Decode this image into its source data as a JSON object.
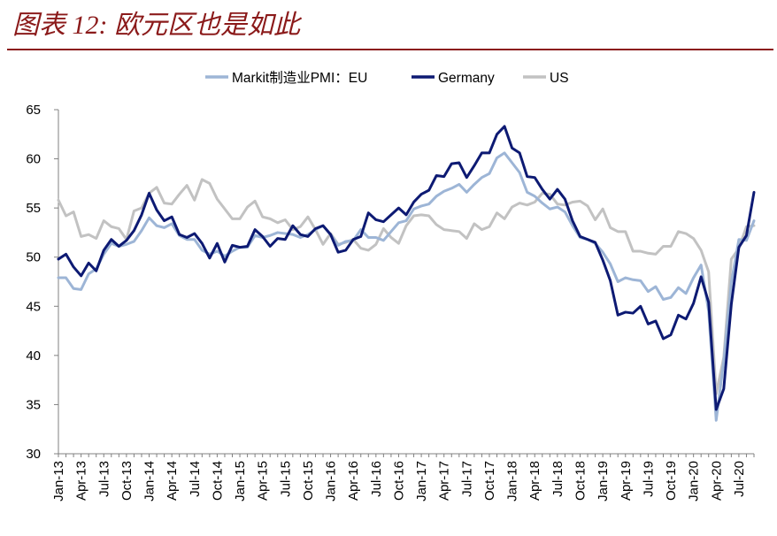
{
  "page": {
    "title": "图表 12: 欧元区也是如此"
  },
  "colors": {
    "title": "#8b1a1a",
    "EU": "#9db5d6",
    "Germany": "#0d1a73",
    "US": "#c2c2c2"
  },
  "chart_data": {
    "type": "line",
    "title": "",
    "xlabel": "",
    "ylabel": "",
    "ylim": [
      30,
      65
    ],
    "yticks": [
      30,
      35,
      40,
      45,
      50,
      55,
      60,
      65
    ],
    "grid": false,
    "legend_position": "top-center",
    "x_start": "Jan-13",
    "x_end": "Oct-20",
    "x_tick_labels": [
      "Jan-13",
      "Apr-13",
      "Jul-13",
      "Oct-13",
      "Jan-14",
      "Apr-14",
      "Jul-14",
      "Oct-14",
      "Jan-15",
      "Apr-15",
      "Jul-15",
      "Oct-15",
      "Jan-16",
      "Apr-16",
      "Jul-16",
      "Oct-16",
      "Jan-17",
      "Apr-17",
      "Jul-17",
      "Oct-17",
      "Jan-18",
      "Apr-18",
      "Jul-18",
      "Oct-18",
      "Jan-19",
      "Apr-19",
      "Jul-19",
      "Oct-19",
      "Jan-20",
      "Apr-20",
      "Jul-20"
    ],
    "series": [
      {
        "name": "Markit制造业PMI：EU",
        "key": "EU",
        "values": [
          47.9,
          47.9,
          46.8,
          46.7,
          48.3,
          48.8,
          50.3,
          51.4,
          51.1,
          51.3,
          51.6,
          52.7,
          54.0,
          53.2,
          53.0,
          53.4,
          52.2,
          51.8,
          51.8,
          50.7,
          50.3,
          50.6,
          50.1,
          50.6,
          51.0,
          51.0,
          52.2,
          52.0,
          52.2,
          52.5,
          52.4,
          52.3,
          52.0,
          52.3,
          52.8,
          53.2,
          52.3,
          51.2,
          51.6,
          51.7,
          52.8,
          52.0,
          52.0,
          51.7,
          52.6,
          53.5,
          53.7,
          54.9,
          55.2,
          55.4,
          56.2,
          56.7,
          57.0,
          57.4,
          56.6,
          57.4,
          58.1,
          58.5,
          60.1,
          60.6,
          59.6,
          58.6,
          56.6,
          56.2,
          55.5,
          54.9,
          55.1,
          54.6,
          53.2,
          52.0,
          51.8,
          51.4,
          50.5,
          49.3,
          47.5,
          47.9,
          47.7,
          47.6,
          46.5,
          47.0,
          45.7,
          45.9,
          46.9,
          46.3,
          47.9,
          49.2,
          44.5,
          33.4,
          39.4,
          47.4,
          51.8,
          51.7,
          53.7
        ]
      },
      {
        "name": "Germany",
        "key": "Germany",
        "values": [
          49.8,
          50.3,
          49.0,
          48.1,
          49.4,
          48.6,
          50.7,
          51.8,
          51.1,
          51.7,
          52.7,
          54.3,
          56.5,
          54.8,
          53.7,
          54.1,
          52.3,
          52.0,
          52.4,
          51.4,
          49.9,
          51.4,
          49.5,
          51.2,
          51.0,
          51.1,
          52.8,
          52.1,
          51.1,
          51.9,
          51.8,
          53.2,
          52.3,
          52.1,
          52.9,
          53.2,
          52.3,
          50.5,
          50.7,
          51.8,
          52.1,
          54.5,
          53.8,
          53.6,
          54.3,
          55.0,
          54.3,
          55.6,
          56.4,
          56.8,
          58.3,
          58.2,
          59.5,
          59.6,
          58.1,
          59.3,
          60.6,
          60.6,
          62.5,
          63.3,
          61.1,
          60.6,
          58.2,
          58.1,
          56.9,
          55.9,
          56.9,
          55.9,
          53.7,
          52.1,
          51.8,
          51.5,
          49.7,
          47.6,
          44.1,
          44.4,
          44.3,
          45.0,
          43.2,
          43.5,
          41.7,
          42.1,
          44.1,
          43.7,
          45.3,
          48.0,
          45.4,
          34.5,
          36.6,
          45.2,
          51.0,
          52.2,
          56.6
        ]
      },
      {
        "name": "US",
        "key": "US",
        "values": [
          55.8,
          54.2,
          54.6,
          52.1,
          52.3,
          51.9,
          53.7,
          53.1,
          52.9,
          51.8,
          54.7,
          55.0,
          56.5,
          57.1,
          55.5,
          55.4,
          56.4,
          57.3,
          55.8,
          57.9,
          57.5,
          55.9,
          54.9,
          53.9,
          53.9,
          55.1,
          55.7,
          54.1,
          53.9,
          53.5,
          53.8,
          52.8,
          53.1,
          54.1,
          52.8,
          51.3,
          52.4,
          51.3,
          51.5,
          51.8,
          50.9,
          50.7,
          51.3,
          52.9,
          52.0,
          51.4,
          53.2,
          54.2,
          54.3,
          54.2,
          53.3,
          52.8,
          52.7,
          52.6,
          51.9,
          53.4,
          52.8,
          53.1,
          54.5,
          53.9,
          55.1,
          55.5,
          55.3,
          55.6,
          56.5,
          56.4,
          55.4,
          55.3,
          55.6,
          55.7,
          55.2,
          53.8,
          54.9,
          53.0,
          52.6,
          52.6,
          50.6,
          50.6,
          50.4,
          50.3,
          51.1,
          51.1,
          52.6,
          52.4,
          51.9,
          50.7,
          48.5,
          36.1,
          39.8,
          49.8,
          50.9,
          53.1,
          53.2
        ]
      }
    ]
  }
}
